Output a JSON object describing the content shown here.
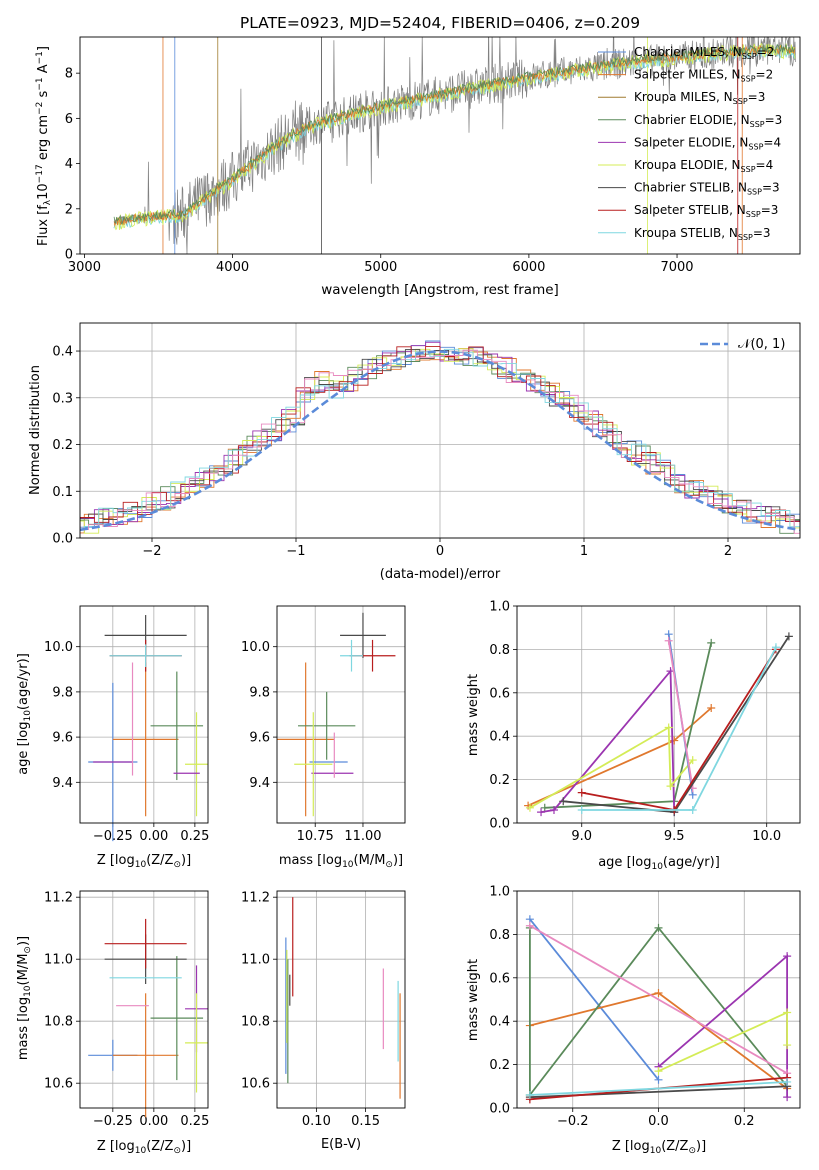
{
  "colors": {
    "grey": "#808080",
    "blue": "#5b8bd9",
    "orange": "#e0782e",
    "green": "#5a8a5a",
    "purple": "#9b35b0",
    "yellow": "#d4ec57",
    "dark": "#4a4a4a",
    "red": "#b81e1e",
    "cyan": "#7fd7e0",
    "pink": "#e88ac0",
    "normal": "#5b8bd9"
  },
  "chart_data": [
    {
      "id": "spectrum",
      "type": "line",
      "title": "PLATE=0923, MJD=52404, FIBERID=0406, z=0.209",
      "xlabel": "wavelength [Angstrom, rest frame]",
      "ylabel_pre": "Flux [f",
      "ylabel_sub": "λ",
      "ylabel_mid": "10",
      "ylabel_sup1": "−17",
      "ylabel_post": " erg cm",
      "ylabel_sup2": "−2",
      "ylabel_s": " s",
      "ylabel_sup3": "−1",
      "ylabel_A": " A",
      "ylabel_sup4": "−1",
      "ylabel_end": "]",
      "xlim": [
        2970,
        7830
      ],
      "ylim": [
        0,
        9.6
      ],
      "xticks": [
        "3000",
        "4000",
        "5000",
        "6000",
        "7000"
      ],
      "yticks": [
        "0",
        "2",
        "4",
        "6",
        "8"
      ],
      "legend": [
        {
          "name": "Chabrier MILES, N",
          "n": "=2",
          "color": "#5b8bd9"
        },
        {
          "name": "Salpeter MILES, N",
          "n": "=2",
          "color": "#e0782e"
        },
        {
          "name": "Kroupa MILES, N",
          "n": "=3",
          "color": "#a07c30"
        },
        {
          "name": "Chabrier ELODIE, N",
          "n": "=3",
          "color": "#5a8a5a"
        },
        {
          "name": "Salpeter ELODIE, N",
          "n": "=4",
          "color": "#9b35b0"
        },
        {
          "name": "Kroupa ELODIE, N",
          "n": "=4",
          "color": "#d4ec57"
        },
        {
          "name": "Chabrier STELIB, N",
          "n": "=3",
          "color": "#4a4a4a"
        },
        {
          "name": "Salpeter STELIB, N",
          "n": "=3",
          "color": "#b81e1e"
        },
        {
          "name": "Kroupa STELIB, N",
          "n": "=3",
          "color": "#7fd7e0"
        }
      ],
      "legend_sub": "SSP",
      "continuum": [
        [
          3200,
          1.4
        ],
        [
          3400,
          1.6
        ],
        [
          3650,
          1.7
        ],
        [
          3800,
          2.4
        ],
        [
          4000,
          3.3
        ],
        [
          4300,
          4.8
        ],
        [
          4500,
          5.6
        ],
        [
          4700,
          6.0
        ],
        [
          5000,
          6.5
        ],
        [
          5300,
          6.9
        ],
        [
          5600,
          7.3
        ],
        [
          6000,
          7.8
        ],
        [
          6300,
          8.1
        ],
        [
          6600,
          8.4
        ],
        [
          7000,
          8.7
        ],
        [
          7300,
          8.9
        ],
        [
          7600,
          9.0
        ]
      ]
    },
    {
      "id": "residuals",
      "type": "line",
      "xlabel": "(data-model)/error",
      "ylabel": "Normed distribution",
      "xlim": [
        -2.5,
        2.5
      ],
      "ylim": [
        0,
        0.46
      ],
      "xticks": [
        "−2",
        "−1",
        "0",
        "1",
        "2"
      ],
      "yticks": [
        "0.0",
        "0.1",
        "0.2",
        "0.3",
        "0.4"
      ],
      "legend_label": "𝒩(0, 1)",
      "bin_width": 0.1
    },
    {
      "id": "age_vs_z",
      "type": "scatter",
      "xlabel": "Z [log",
      "xlabel_sub": "10",
      "xlabel_post": "(Z/Z",
      "xlabel_odot": "⊙",
      "xlabel_end": ")]",
      "ylabel": "age  [log",
      "ylabel_sub": "10",
      "ylabel_post": "(age/yr)]",
      "xlim": [
        -0.45,
        0.33
      ],
      "ylim": [
        9.22,
        10.18
      ],
      "xticks": [
        "−0.25",
        "0.00",
        "0.25"
      ],
      "yticks": [
        "9.4",
        "9.6",
        "9.8",
        "10.0"
      ],
      "points": [
        {
          "x": -0.25,
          "y": 9.49,
          "xerr": 0.15,
          "yerr": 0.35,
          "color": "#5b8bd9"
        },
        {
          "x": -0.05,
          "y": 9.59,
          "xerr": 0.2,
          "yerr": 0.34,
          "color": "#e0782e"
        },
        {
          "x": 0.14,
          "y": 9.65,
          "xerr": 0.16,
          "yerr": 0.24,
          "color": "#5a8a5a"
        },
        {
          "x": -0.25,
          "y": 9.49,
          "xerr": 0.12,
          "yerr": 0.0,
          "color": "#9b35b0"
        },
        {
          "x": 0.26,
          "y": 9.48,
          "xerr": 0.07,
          "yerr": 0.23,
          "color": "#d4ec57"
        },
        {
          "x": -0.05,
          "y": 10.05,
          "xerr": 0.25,
          "yerr": 0.09,
          "color": "#4a4a4a"
        },
        {
          "x": -0.05,
          "y": 9.96,
          "xerr": 0.22,
          "yerr": 0.07,
          "color": "#b81e1e"
        },
        {
          "x": -0.05,
          "y": 9.96,
          "xerr": 0.22,
          "yerr": 0.05,
          "color": "#7fd7e0"
        },
        {
          "x": -0.13,
          "y": 9.68,
          "xerr": 0.0,
          "yerr": 0.25,
          "color": "#e88ac0"
        },
        {
          "x": 0.2,
          "y": 9.44,
          "xerr": 0.08,
          "yerr": 0.0,
          "color": "#9b35b0"
        }
      ]
    },
    {
      "id": "age_vs_mass",
      "type": "scatter",
      "xlabel": "mass [log",
      "xlabel_sub": "10",
      "xlabel_post": "(M/M",
      "xlabel_odot": "⊙",
      "xlabel_end": ")]",
      "xlim": [
        10.55,
        11.22
      ],
      "ylim": [
        9.22,
        10.18
      ],
      "xticks": [
        "10.75",
        "11.00"
      ],
      "yticks": [
        "9.4",
        "9.6",
        "9.8",
        "10.0"
      ],
      "points": [
        {
          "x": 10.82,
          "y": 9.49,
          "xerr": 0.1,
          "yerr": 0.0,
          "color": "#5b8bd9"
        },
        {
          "x": 10.7,
          "y": 9.59,
          "xerr": 0.15,
          "yerr": 0.34,
          "color": "#e0782e"
        },
        {
          "x": 10.81,
          "y": 9.65,
          "xerr": 0.15,
          "yerr": 0.15,
          "color": "#5a8a5a"
        },
        {
          "x": 10.84,
          "y": 9.44,
          "xerr": 0.11,
          "yerr": 0.0,
          "color": "#9b35b0"
        },
        {
          "x": 10.74,
          "y": 9.48,
          "xerr": 0.1,
          "yerr": 0.23,
          "color": "#d4ec57"
        },
        {
          "x": 11.0,
          "y": 10.05,
          "xerr": 0.12,
          "yerr": 0.1,
          "color": "#4a4a4a"
        },
        {
          "x": 11.05,
          "y": 9.96,
          "xerr": 0.12,
          "yerr": 0.07,
          "color": "#b81e1e"
        },
        {
          "x": 10.94,
          "y": 9.96,
          "xerr": 0.06,
          "yerr": 0.07,
          "color": "#7fd7e0"
        },
        {
          "x": 10.85,
          "y": 9.52,
          "xerr": 0.0,
          "yerr": 0.1,
          "color": "#e88ac0"
        }
      ]
    },
    {
      "id": "weight_vs_age",
      "type": "line",
      "xlabel": "age  [log",
      "xlabel_sub": "10",
      "xlabel_post": "(age/yr)]",
      "ylabel": "mass weight",
      "xlim": [
        8.65,
        10.18
      ],
      "ylim": [
        0,
        1.0
      ],
      "xticks": [
        "9.0",
        "9.5",
        "10.0"
      ],
      "yticks": [
        "0.0",
        "0.2",
        "0.4",
        "0.6",
        "0.8",
        "1.0"
      ],
      "series": [
        {
          "color": "#e0782e",
          "points": [
            [
              8.71,
              0.08
            ],
            [
              9.5,
              0.38
            ],
            [
              9.7,
              0.53
            ]
          ]
        },
        {
          "color": "#5a8a5a",
          "points": [
            [
              8.8,
              0.07
            ],
            [
              9.5,
              0.1
            ],
            [
              9.7,
              0.83
            ]
          ]
        },
        {
          "color": "#9b35b0",
          "points": [
            [
              8.78,
              0.05
            ],
            [
              8.85,
              0.06
            ],
            [
              9.48,
              0.7
            ],
            [
              9.5,
              0.05
            ]
          ]
        },
        {
          "color": "#d4ec57",
          "points": [
            [
              8.72,
              0.07
            ],
            [
              9.47,
              0.44
            ],
            [
              9.48,
              0.17
            ],
            [
              9.6,
              0.29
            ]
          ]
        },
        {
          "color": "#5b8bd9",
          "points": [
            [
              9.47,
              0.87
            ],
            [
              9.6,
              0.13
            ]
          ]
        },
        {
          "color": "#e88ac0",
          "points": [
            [
              9.47,
              0.84
            ],
            [
              9.6,
              0.16
            ]
          ]
        },
        {
          "color": "#4a4a4a",
          "points": [
            [
              8.9,
              0.1
            ],
            [
              9.5,
              0.05
            ],
            [
              10.12,
              0.86
            ]
          ]
        },
        {
          "color": "#b81e1e",
          "points": [
            [
              9.0,
              0.14
            ],
            [
              9.5,
              0.06
            ],
            [
              10.05,
              0.8
            ]
          ]
        },
        {
          "color": "#7fd7e0",
          "points": [
            [
              9.0,
              0.06
            ],
            [
              9.6,
              0.06
            ],
            [
              10.05,
              0.81
            ]
          ]
        }
      ]
    },
    {
      "id": "mass_vs_z",
      "type": "scatter",
      "xlabel": "Z [log",
      "xlabel_sub": "10",
      "xlabel_post": "(Z/Z",
      "xlabel_odot": "⊙",
      "xlabel_end": ")]",
      "ylabel": "mass [log",
      "ylabel_sub": "10",
      "ylabel_post": "(M/M",
      "ylabel_odot": "⊙",
      "ylabel_end": ")]",
      "xlim": [
        -0.45,
        0.33
      ],
      "ylim": [
        10.52,
        11.22
      ],
      "xticks": [
        "−0.25",
        "0.00",
        "0.25"
      ],
      "yticks": [
        "10.6",
        "10.8",
        "11.0",
        "11.2"
      ],
      "points": [
        {
          "x": -0.25,
          "y": 10.69,
          "xerr": 0.15,
          "yerr": 0.05,
          "color": "#5b8bd9"
        },
        {
          "x": -0.05,
          "y": 10.69,
          "xerr": 0.2,
          "yerr": 0.2,
          "color": "#e0782e"
        },
        {
          "x": 0.14,
          "y": 10.81,
          "xerr": 0.16,
          "yerr": 0.2,
          "color": "#5a8a5a"
        },
        {
          "x": 0.26,
          "y": 10.84,
          "xerr": 0.07,
          "yerr": 0.14,
          "color": "#9b35b0"
        },
        {
          "x": 0.26,
          "y": 10.73,
          "xerr": 0.07,
          "yerr": 0.16,
          "color": "#d4ec57"
        },
        {
          "x": -0.05,
          "y": 11.0,
          "xerr": 0.25,
          "yerr": 0.08,
          "color": "#4a4a4a"
        },
        {
          "x": -0.05,
          "y": 11.05,
          "xerr": 0.25,
          "yerr": 0.08,
          "color": "#b81e1e"
        },
        {
          "x": -0.05,
          "y": 10.94,
          "xerr": 0.22,
          "yerr": 0.0,
          "color": "#7fd7e0"
        },
        {
          "x": -0.13,
          "y": 10.85,
          "xerr": 0.1,
          "yerr": 0.0,
          "color": "#e88ac0"
        }
      ]
    },
    {
      "id": "mass_vs_ebv",
      "type": "scatter",
      "xlabel": "E(B-V)",
      "xlim": [
        0.06,
        0.19
      ],
      "ylim": [
        10.52,
        11.22
      ],
      "xticks": [
        "0.10",
        "0.15"
      ],
      "yticks": [
        "10.6",
        "10.8",
        "11.0",
        "11.2"
      ],
      "points": [
        {
          "x": 0.069,
          "y": 10.85,
          "yerr": 0.22,
          "color": "#5b8bd9"
        },
        {
          "x": 0.185,
          "y": 10.72,
          "yerr": 0.17,
          "color": "#e0782e"
        },
        {
          "x": 0.071,
          "y": 10.8,
          "yerr": 0.2,
          "color": "#5a8a5a"
        },
        {
          "x": 0.07,
          "y": 10.88,
          "yerr": 0.15,
          "color": "#d4ec57"
        },
        {
          "x": 0.073,
          "y": 10.9,
          "yerr": 0.05,
          "color": "#4a4a4a"
        },
        {
          "x": 0.076,
          "y": 11.04,
          "yerr": 0.16,
          "color": "#b81e1e"
        },
        {
          "x": 0.183,
          "y": 10.8,
          "yerr": 0.13,
          "color": "#7fd7e0"
        },
        {
          "x": 0.168,
          "y": 10.84,
          "yerr": 0.13,
          "color": "#e88ac0"
        }
      ]
    },
    {
      "id": "weight_vs_z",
      "type": "line",
      "xlabel": "Z [log",
      "xlabel_sub": "10",
      "xlabel_post": "(Z/Z",
      "xlabel_odot": "⊙",
      "xlabel_end": ")]",
      "ylabel": "mass weight",
      "xlim": [
        -0.33,
        0.33
      ],
      "ylim": [
        0,
        1.0
      ],
      "xticks": [
        "−0.2",
        "0.0",
        "0.2"
      ],
      "yticks": [
        "0.0",
        "0.2",
        "0.4",
        "0.6",
        "0.8",
        "1.0"
      ],
      "series": [
        {
          "color": "#5b8bd9",
          "points": [
            [
              -0.3,
              0.87
            ],
            [
              0.0,
              0.13
            ]
          ]
        },
        {
          "color": "#e0782e",
          "points": [
            [
              -0.3,
              0.38
            ],
            [
              0.0,
              0.53
            ],
            [
              0.3,
              0.09
            ]
          ]
        },
        {
          "color": "#5a8a5a",
          "points": [
            [
              -0.3,
              0.83
            ],
            [
              -0.3,
              0.06
            ],
            [
              0.0,
              0.83
            ],
            [
              0.3,
              0.1
            ]
          ]
        },
        {
          "color": "#9b35b0",
          "points": [
            [
              0.0,
              0.19
            ],
            [
              0.3,
              0.7
            ],
            [
              0.3,
              0.05
            ]
          ]
        },
        {
          "color": "#d4ec57",
          "points": [
            [
              0.0,
              0.17
            ],
            [
              0.3,
              0.44
            ],
            [
              0.3,
              0.29
            ]
          ]
        },
        {
          "color": "#e88ac0",
          "points": [
            [
              -0.3,
              0.84
            ],
            [
              0.3,
              0.16
            ]
          ]
        },
        {
          "color": "#4a4a4a",
          "points": [
            [
              -0.3,
              0.05
            ],
            [
              0.3,
              0.1
            ]
          ]
        },
        {
          "color": "#b81e1e",
          "points": [
            [
              -0.3,
              0.04
            ],
            [
              0.3,
              0.14
            ]
          ]
        },
        {
          "color": "#7fd7e0",
          "points": [
            [
              -0.3,
              0.06
            ],
            [
              0.3,
              0.12
            ]
          ]
        }
      ]
    }
  ]
}
